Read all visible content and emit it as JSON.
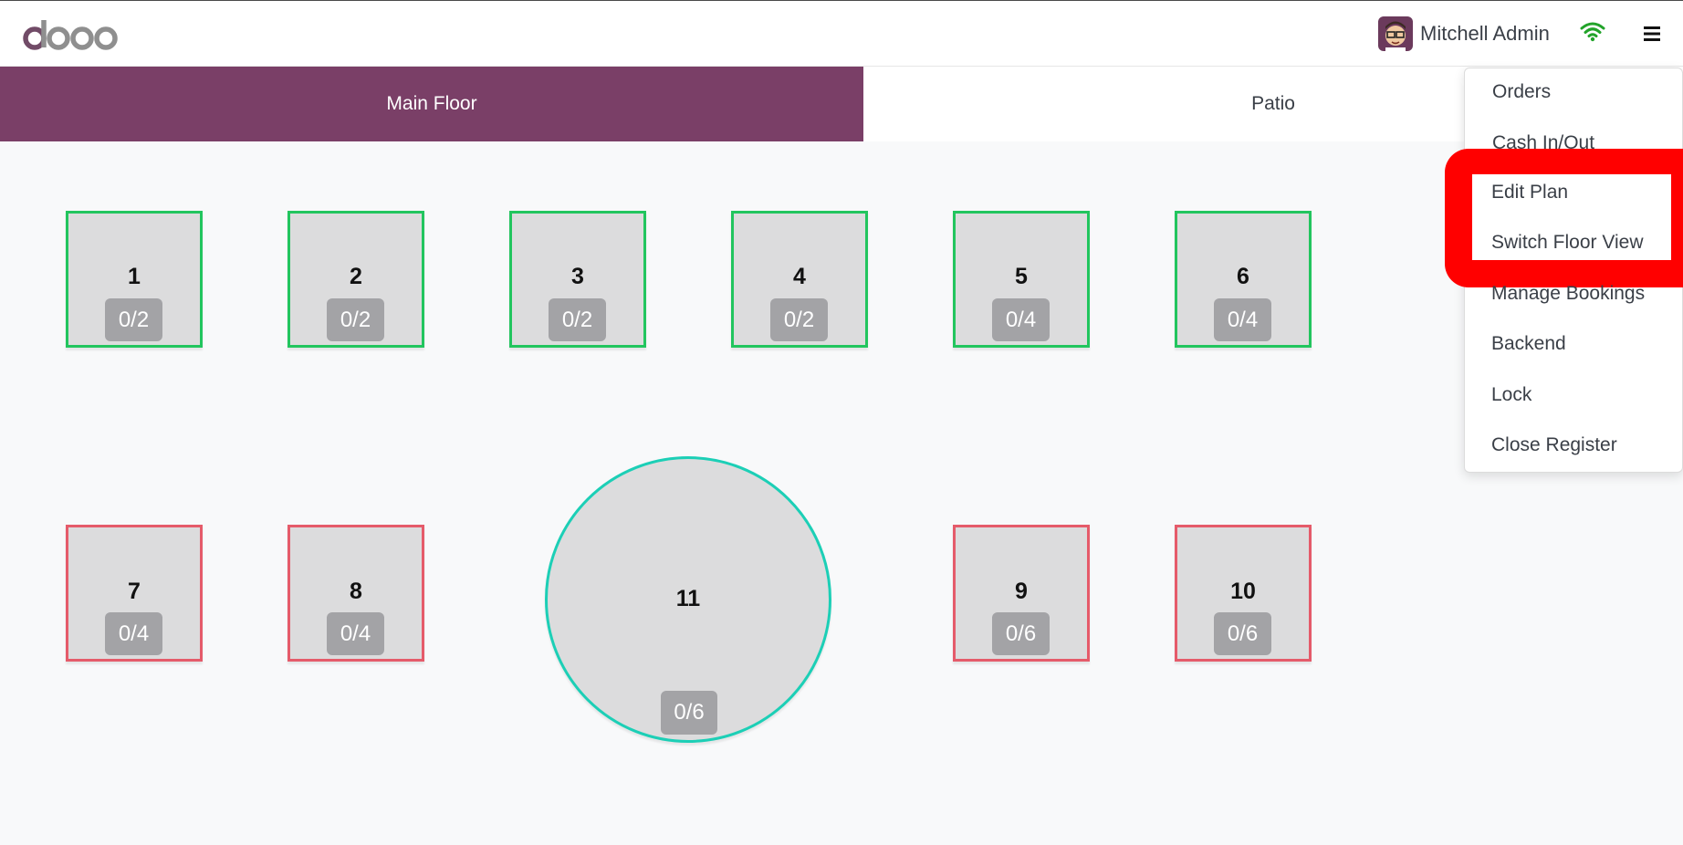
{
  "header": {
    "logo_text": "odoo",
    "user_name": "Mitchell Admin",
    "icons": {
      "wifi": "wifi-icon",
      "menu": "hamburger-menu-icon"
    },
    "colors": {
      "brand": "#714b67",
      "wifi": "#22a32a"
    }
  },
  "tabs": [
    {
      "label": "Main Floor",
      "active": true
    },
    {
      "label": "Patio",
      "active": false
    }
  ],
  "tables": [
    {
      "number": "1",
      "seats": "0/2",
      "status": "free"
    },
    {
      "number": "2",
      "seats": "0/2",
      "status": "free"
    },
    {
      "number": "3",
      "seats": "0/2",
      "status": "free"
    },
    {
      "number": "4",
      "seats": "0/2",
      "status": "free"
    },
    {
      "number": "5",
      "seats": "0/4",
      "status": "free"
    },
    {
      "number": "6",
      "seats": "0/4",
      "status": "free"
    },
    {
      "number": "7",
      "seats": "0/4",
      "status": "occupied"
    },
    {
      "number": "8",
      "seats": "0/4",
      "status": "occupied"
    },
    {
      "number": "11",
      "seats": "0/6",
      "status": "round"
    },
    {
      "number": "9",
      "seats": "0/6",
      "status": "occupied"
    },
    {
      "number": "10",
      "seats": "0/6",
      "status": "occupied"
    }
  ],
  "menu": {
    "items": [
      "Orders",
      "Cash In/Out",
      "Edit Plan",
      "Switch Floor View",
      "Manage Bookings",
      "Backend",
      "Lock",
      "Close Register"
    ],
    "highlight_color": "#ff0000"
  }
}
